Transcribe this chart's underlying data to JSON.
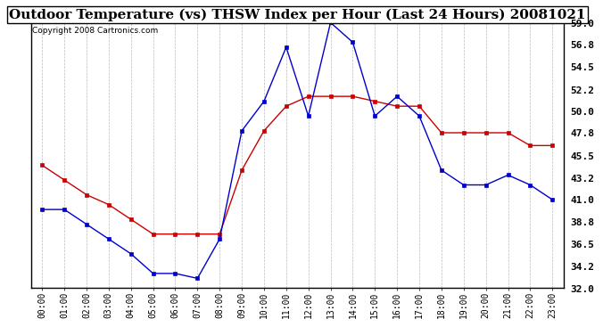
{
  "title": "Outdoor Temperature (vs) THSW Index per Hour (Last 24 Hours) 20081021",
  "copyright": "Copyright 2008 Cartronics.com",
  "x_labels": [
    "00:00",
    "01:00",
    "02:00",
    "03:00",
    "04:00",
    "05:00",
    "06:00",
    "07:00",
    "08:00",
    "09:00",
    "10:00",
    "11:00",
    "12:00",
    "13:00",
    "14:00",
    "15:00",
    "16:00",
    "17:00",
    "18:00",
    "19:00",
    "20:00",
    "21:00",
    "22:00",
    "23:00"
  ],
  "temp_data": [
    40.0,
    40.0,
    38.5,
    37.0,
    35.5,
    33.5,
    33.5,
    33.0,
    37.0,
    48.0,
    51.0,
    56.5,
    49.5,
    59.0,
    57.0,
    49.5,
    51.5,
    49.5,
    44.0,
    42.5,
    42.5,
    43.5,
    42.5,
    41.0
  ],
  "thsw_data": [
    44.5,
    43.0,
    41.5,
    40.5,
    39.0,
    37.5,
    37.5,
    37.5,
    37.5,
    44.0,
    48.0,
    50.5,
    51.5,
    51.5,
    51.5,
    51.0,
    50.5,
    50.5,
    47.8,
    47.8,
    47.8,
    47.8,
    46.5,
    46.5
  ],
  "temp_color": "#0000cc",
  "thsw_color": "#cc0000",
  "ylim_min": 32.0,
  "ylim_max": 59.0,
  "yticks": [
    32.0,
    34.2,
    36.5,
    38.8,
    41.0,
    43.2,
    45.5,
    47.8,
    50.0,
    52.2,
    54.5,
    56.8,
    59.0
  ],
  "bg_color": "#ffffff",
  "grid_color": "#bbbbbb",
  "marker": "s",
  "marker_size": 2.5,
  "line_width": 1.0,
  "title_fontsize": 11,
  "copyright_fontsize": 6.5,
  "tick_fontsize": 7,
  "ytick_fontsize": 8
}
